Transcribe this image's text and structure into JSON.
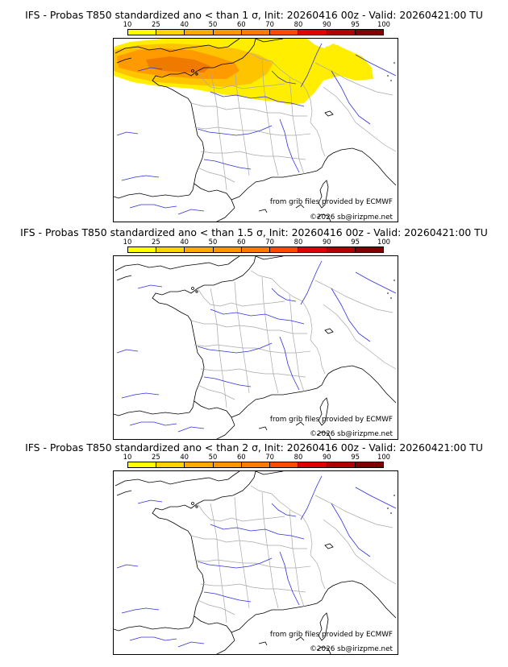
{
  "colors": {
    "scale": [
      "#ffff00",
      "#ffd400",
      "#ffaa00",
      "#ff9500",
      "#ff7a00",
      "#ff4a00",
      "#e00000",
      "#b00000",
      "#800000"
    ],
    "coast": "#000000",
    "rivers": "#2222dd",
    "borders": "#999999",
    "prob_low": "#ffee00",
    "prob_mid": "#ffc400",
    "prob_high": "#ff9a00",
    "prob_peak": "#f07a00"
  },
  "scale_ticks": [
    "10",
    "25",
    "40",
    "50",
    "60",
    "70",
    "80",
    "90",
    "95",
    "100"
  ],
  "panels": [
    {
      "title": "IFS - Probas T850  standardized ano < than 1 σ, Init: 20260416 00z - Valid: 20260421:00 TU",
      "credit_source": "from grib files provided by ECMWF",
      "credit_copyright": "©2026 sb@irizpme.net",
      "has_probability_field": true
    },
    {
      "title": "IFS - Probas T850  standardized ano < than 1.5 σ, Init: 20260416 00z - Valid: 20260421:00 TU",
      "credit_source": "from grib files provided by ECMWF",
      "credit_copyright": "©2026 sb@irizpme.net",
      "has_probability_field": false
    },
    {
      "title": "IFS - Probas T850  standardized ano < than 2 σ, Init: 20260416 00z - Valid: 20260421:00 TU",
      "credit_source": "from grib files provided by ECMWF",
      "credit_copyright": "©2026 sb@irizpme.net",
      "has_probability_field": false
    }
  ]
}
